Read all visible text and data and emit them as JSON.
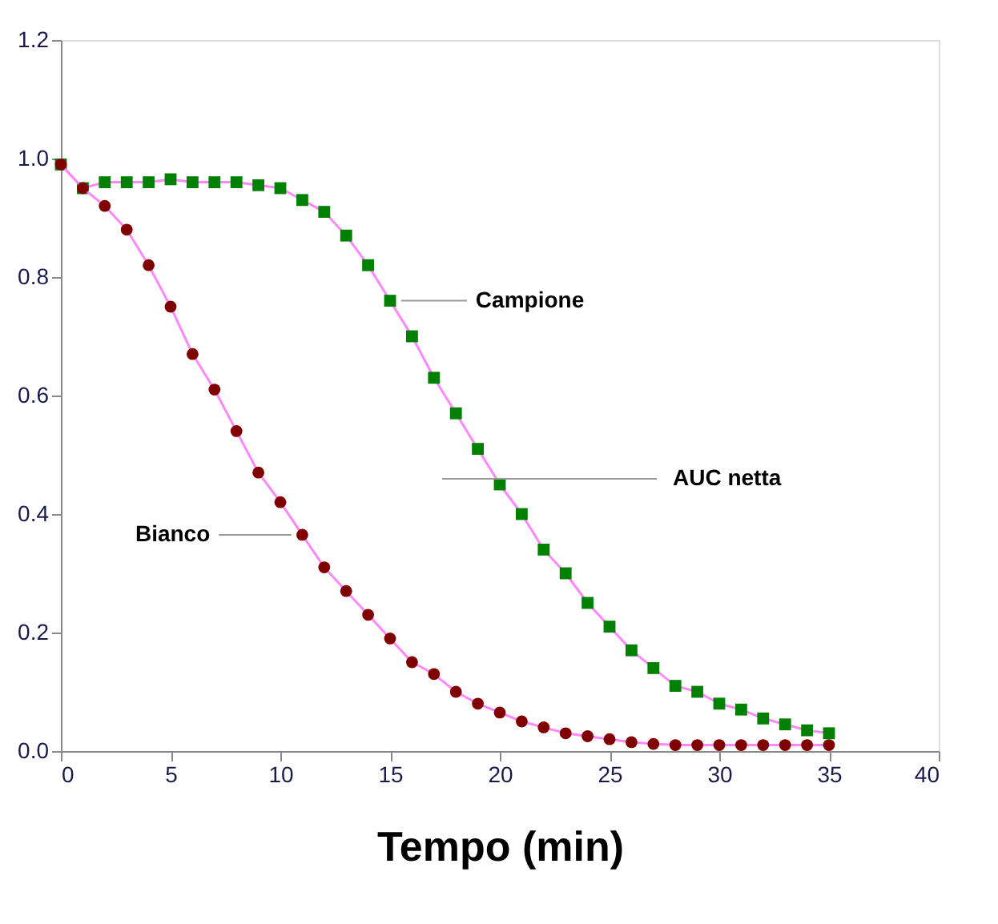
{
  "chart_data": {
    "type": "line",
    "xlabel": "Tempo (min)",
    "x": [
      0,
      1,
      2,
      3,
      4,
      5,
      6,
      7,
      8,
      9,
      10,
      11,
      12,
      13,
      14,
      15,
      16,
      17,
      18,
      19,
      20,
      21,
      22,
      23,
      24,
      25,
      26,
      27,
      28,
      29,
      30,
      31,
      32,
      33,
      34,
      35
    ],
    "series": [
      {
        "name": "Campione",
        "color": "#008000",
        "marker": "square",
        "values": [
          0.99,
          0.95,
          0.96,
          0.96,
          0.96,
          0.965,
          0.96,
          0.96,
          0.96,
          0.955,
          0.95,
          0.93,
          0.91,
          0.87,
          0.82,
          0.76,
          0.7,
          0.63,
          0.57,
          0.51,
          0.45,
          0.4,
          0.34,
          0.3,
          0.25,
          0.21,
          0.17,
          0.14,
          0.11,
          0.1,
          0.08,
          0.07,
          0.055,
          0.045,
          0.035,
          0.03
        ]
      },
      {
        "name": "Bianco",
        "color": "#800000",
        "marker": "circle",
        "values": [
          0.99,
          0.95,
          0.92,
          0.88,
          0.82,
          0.75,
          0.67,
          0.61,
          0.54,
          0.47,
          0.42,
          0.365,
          0.31,
          0.27,
          0.23,
          0.19,
          0.15,
          0.13,
          0.1,
          0.08,
          0.065,
          0.05,
          0.04,
          0.03,
          0.025,
          0.02,
          0.015,
          0.012,
          0.01,
          0.01,
          0.01,
          0.01,
          0.01,
          0.01,
          0.01,
          0.01
        ]
      }
    ],
    "annotations": [
      "AUC netta"
    ],
    "xlim": [
      0,
      40
    ],
    "xticks": [
      0,
      5,
      10,
      15,
      20,
      25,
      30,
      35,
      40
    ],
    "ylim": [
      0,
      1.2
    ],
    "yticks": [
      {
        "value": 0,
        "label": "0.0"
      },
      0.2,
      0.4,
      0.6,
      0.8,
      {
        "value": 1,
        "label": "1.0"
      },
      1.2
    ],
    "grid": false,
    "line_style": "solid"
  }
}
